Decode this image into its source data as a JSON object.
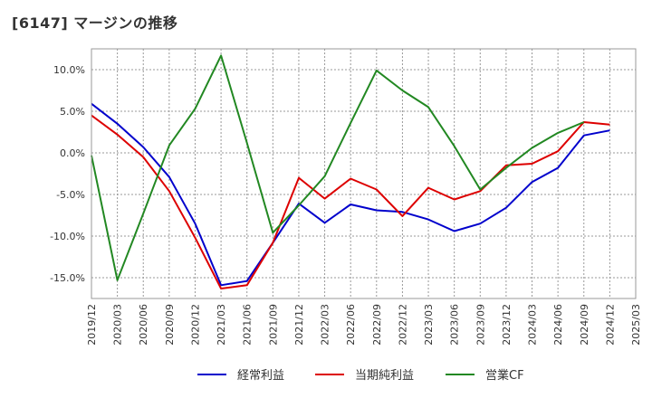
{
  "chart_data": {
    "type": "line",
    "title": "[6147]  マージンの推移",
    "x": [
      "2019/12",
      "2020/03",
      "2020/06",
      "2020/09",
      "2020/12",
      "2021/03",
      "2021/06",
      "2021/09",
      "2021/12",
      "2022/03",
      "2022/06",
      "2022/09",
      "2022/12",
      "2023/03",
      "2023/06",
      "2023/09",
      "2023/12",
      "2024/03",
      "2024/06",
      "2024/09",
      "2024/12",
      "2025/03"
    ],
    "y_ticks": [
      "10.0%",
      "5.0%",
      "0.0%",
      "-5.0%",
      "-10.0%",
      "-15.0%"
    ],
    "y_tick_values": [
      10,
      5,
      0,
      -5,
      -10,
      -15
    ],
    "ylim": [
      -17.5,
      12.5
    ],
    "grid": true,
    "legend_position": "bottom",
    "series": [
      {
        "name": "経常利益",
        "color": "#0000cc",
        "values": [
          5.9,
          3.5,
          0.7,
          -2.9,
          -8.5,
          -15.9,
          -15.4,
          -10.8,
          -6.1,
          -8.4,
          -6.2,
          -6.9,
          -7.1,
          -8.0,
          -9.4,
          -8.5,
          -6.6,
          -3.5,
          -1.8,
          2.1,
          2.7,
          null
        ]
      },
      {
        "name": "当期純利益",
        "color": "#dd0000",
        "values": [
          4.5,
          2.2,
          -0.5,
          -4.6,
          -10.2,
          -16.3,
          -15.9,
          -10.8,
          -3.0,
          -5.5,
          -3.1,
          -4.4,
          -7.6,
          -4.2,
          -5.6,
          -4.6,
          -1.5,
          -1.3,
          0.2,
          3.7,
          3.4,
          null
        ]
      },
      {
        "name": "営業CF",
        "color": "#228822",
        "values": [
          -0.3,
          -15.3,
          -7.3,
          0.9,
          5.3,
          11.7,
          1.2,
          -9.6,
          -6.3,
          -2.8,
          3.6,
          9.9,
          7.5,
          5.5,
          0.8,
          -4.4,
          -1.8,
          0.6,
          2.4,
          3.7,
          null,
          null
        ]
      }
    ]
  }
}
